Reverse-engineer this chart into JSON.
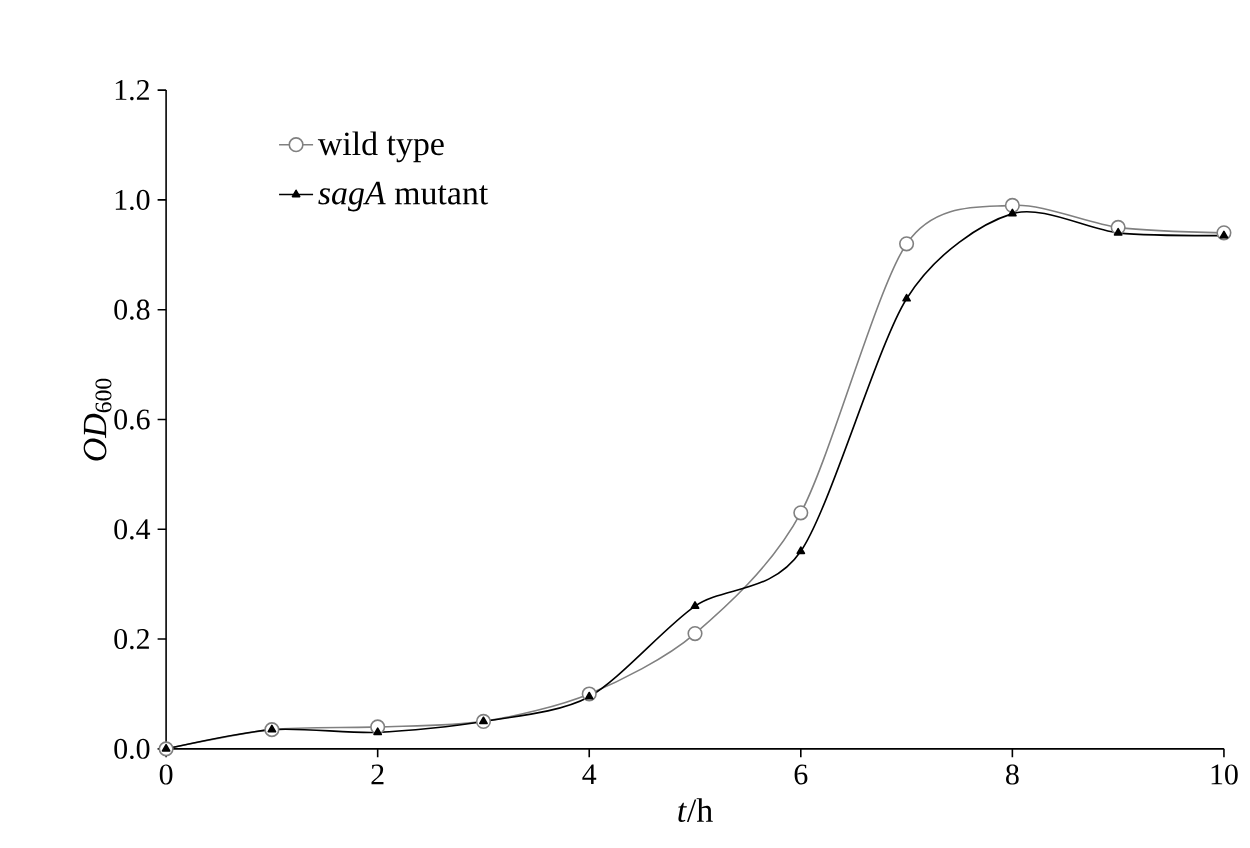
{
  "chart_data": {
    "type": "line",
    "xlabel": "*t*/h",
    "ylabel": "*OD*$_{600}$",
    "x": [
      0,
      1,
      2,
      3,
      4,
      5,
      6,
      7,
      8,
      9,
      10
    ],
    "series": [
      {
        "name": "wild type",
        "color": "#808080",
        "marker": "circle",
        "values": [
          0,
          0.035,
          0.04,
          0.05,
          0.1,
          0.21,
          0.43,
          0.92,
          0.99,
          0.95,
          0.94
        ]
      },
      {
        "name": "*sagA* mutant",
        "color": "#000000",
        "marker": "triangle",
        "values": [
          0,
          0.035,
          0.03,
          0.05,
          0.095,
          0.26,
          0.36,
          0.82,
          0.975,
          0.94,
          0.935
        ]
      }
    ],
    "xlim": [
      0,
      10
    ],
    "xticks": [
      0,
      2,
      4,
      6,
      8,
      10
    ],
    "ylim": [
      0,
      1.2
    ],
    "yticks": [
      {
        "value": 0,
        "label": "0.0"
      },
      {
        "value": 0.2,
        "label": "0.2"
      },
      {
        "value": 0.4,
        "label": "0.4"
      },
      {
        "value": 0.6,
        "label": "0.6"
      },
      {
        "value": 0.8,
        "label": "0.8"
      },
      {
        "value": 1.0,
        "label": "1.0"
      },
      {
        "value": 1.2,
        "label": "1.2"
      }
    ],
    "grid": false,
    "legend": "top left",
    "line_style": "solid"
  }
}
